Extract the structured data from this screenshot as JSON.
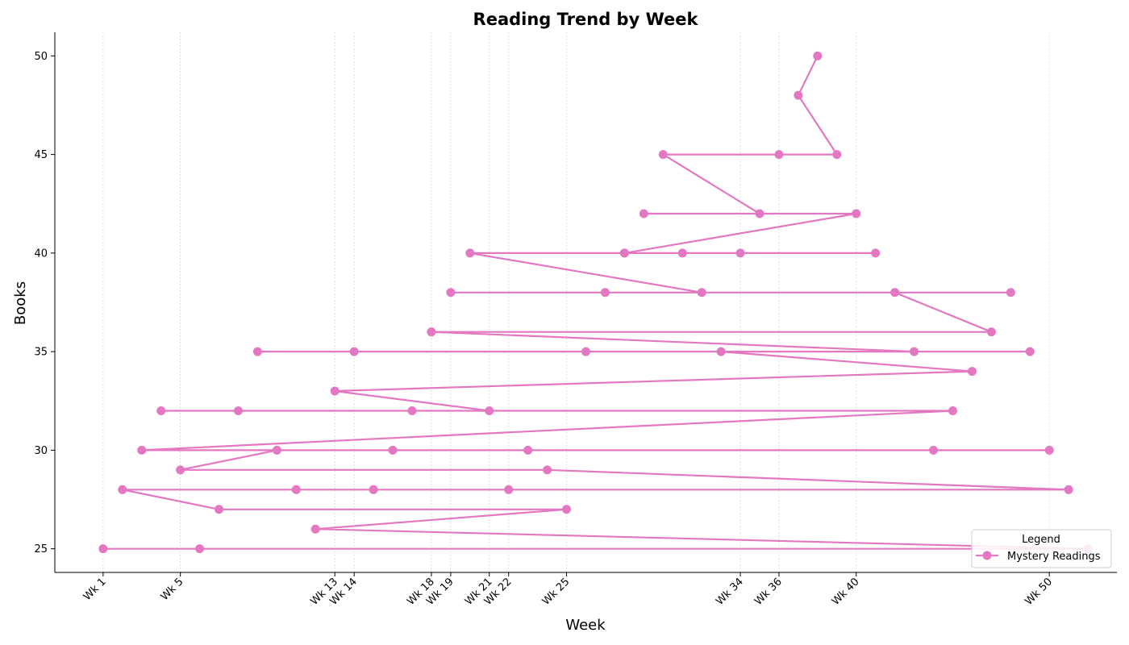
{
  "chart_data": {
    "type": "line",
    "title": "Reading Trend by Week",
    "xlabel": "Week",
    "ylabel": "Books",
    "x_ticks": [
      {
        "value": 1,
        "label": "Wk 1"
      },
      {
        "value": 5,
        "label": "Wk 5"
      },
      {
        "value": 13,
        "label": "Wk 13"
      },
      {
        "value": 14,
        "label": "Wk 14"
      },
      {
        "value": 18,
        "label": "Wk 18"
      },
      {
        "value": 19,
        "label": "Wk 19"
      },
      {
        "value": 21,
        "label": "Wk 21"
      },
      {
        "value": 22,
        "label": "Wk 22"
      },
      {
        "value": 25,
        "label": "Wk 25"
      },
      {
        "value": 34,
        "label": "Wk 34"
      },
      {
        "value": 36,
        "label": "Wk 36"
      },
      {
        "value": 40,
        "label": "Wk 40"
      },
      {
        "value": 50,
        "label": "Wk 50"
      }
    ],
    "y_ticks": [
      25,
      30,
      35,
      40,
      45,
      50
    ],
    "xlim": [
      -1.5,
      53.5
    ],
    "ylim": [
      23.8,
      51.2
    ],
    "grid": "x-dotted",
    "legend": {
      "title": "Legend",
      "position": "bottom-right"
    },
    "color": "#e377c2",
    "series": [
      {
        "name": "Mystery Readings",
        "points": [
          [
            1,
            25
          ],
          [
            6,
            25
          ],
          [
            52,
            25
          ],
          [
            12,
            26
          ],
          [
            25,
            27
          ],
          [
            7,
            27
          ],
          [
            2,
            28
          ],
          [
            11,
            28
          ],
          [
            15,
            28
          ],
          [
            22,
            28
          ],
          [
            51,
            28
          ],
          [
            24,
            29
          ],
          [
            5,
            29
          ],
          [
            10,
            30
          ],
          [
            16,
            30
          ],
          [
            23,
            30
          ],
          [
            44,
            30
          ],
          [
            50,
            30
          ],
          [
            3,
            30
          ],
          [
            45,
            32
          ],
          [
            4,
            32
          ],
          [
            8,
            32
          ],
          [
            17,
            32
          ],
          [
            21,
            32
          ],
          [
            13,
            33
          ],
          [
            46,
            34
          ],
          [
            33,
            35
          ],
          [
            9,
            35
          ],
          [
            14,
            35
          ],
          [
            26,
            35
          ],
          [
            49,
            35
          ],
          [
            43,
            35
          ],
          [
            18,
            36
          ],
          [
            47,
            36
          ],
          [
            42,
            38
          ],
          [
            48,
            38
          ],
          [
            19,
            38
          ],
          [
            27,
            38
          ],
          [
            32,
            38
          ],
          [
            20,
            40
          ],
          [
            28,
            40
          ],
          [
            31,
            40
          ],
          [
            34,
            40
          ],
          [
            41,
            40
          ],
          [
            28,
            40
          ],
          [
            40,
            42
          ],
          [
            29,
            42
          ],
          [
            35,
            42
          ],
          [
            30,
            45
          ],
          [
            36,
            45
          ],
          [
            39,
            45
          ],
          [
            37,
            48
          ],
          [
            38,
            50
          ]
        ]
      }
    ]
  }
}
